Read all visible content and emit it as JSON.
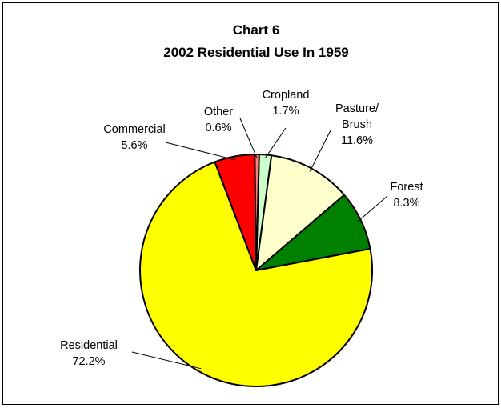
{
  "chart_data": {
    "type": "pie",
    "title": "Chart 6",
    "subtitle": "2002 Residential Use In 1959",
    "slices": [
      {
        "name": "Cropland",
        "value": 1.7,
        "pct_label": "1.7%",
        "color": "#ccffcc"
      },
      {
        "name": "Pasture/ Brush",
        "lines": [
          "Pasture/",
          "Brush"
        ],
        "value": 11.6,
        "pct_label": "11.6%",
        "color": "#ffffcc"
      },
      {
        "name": "Forest",
        "value": 8.3,
        "pct_label": "8.3%",
        "color": "#008000"
      },
      {
        "name": "Residential",
        "value": 72.2,
        "pct_label": "72.2%",
        "color": "#ffff00"
      },
      {
        "name": "Commercial",
        "value": 5.6,
        "pct_label": "5.6%",
        "color": "#ff0000"
      },
      {
        "name": "Other",
        "value": 0.6,
        "pct_label": "0.6%",
        "color": "#ff8080"
      }
    ],
    "legend": "none"
  }
}
